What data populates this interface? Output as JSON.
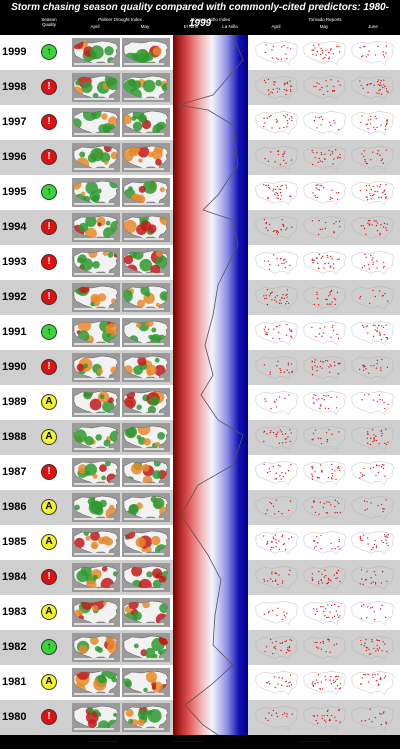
{
  "title": "Storm chasing season quality compared with commonly-cited predictors: 1980-1999",
  "headers": {
    "quality": "Season Quality",
    "drought_title": "Palmer Drought Index",
    "drought_april": "April",
    "drought_may": "May",
    "oni_title": "Oceanic Niño Index",
    "oni_el_nino": "El Niño",
    "oni_la_nina": "La Niña",
    "tornado_title": "Tornado Reports",
    "tornado_april": "April",
    "tornado_may": "May",
    "tornado_june": "June"
  },
  "rows": [
    {
      "year": "1999",
      "quality": "good",
      "symbol": "↑"
    },
    {
      "year": "1998",
      "quality": "bad",
      "symbol": "!"
    },
    {
      "year": "1997",
      "quality": "bad",
      "symbol": "!"
    },
    {
      "year": "1996",
      "quality": "bad",
      "symbol": "!"
    },
    {
      "year": "1995",
      "quality": "good",
      "symbol": "↑"
    },
    {
      "year": "1994",
      "quality": "bad",
      "symbol": "!"
    },
    {
      "year": "1993",
      "quality": "bad",
      "symbol": "!"
    },
    {
      "year": "1992",
      "quality": "bad",
      "symbol": "!"
    },
    {
      "year": "1991",
      "quality": "good",
      "symbol": "↑"
    },
    {
      "year": "1990",
      "quality": "bad",
      "symbol": "!"
    },
    {
      "year": "1989",
      "quality": "avg",
      "symbol": "A"
    },
    {
      "year": "1988",
      "quality": "avg",
      "symbol": "A"
    },
    {
      "year": "1987",
      "quality": "bad",
      "symbol": "!"
    },
    {
      "year": "1986",
      "quality": "avg",
      "symbol": "A"
    },
    {
      "year": "1985",
      "quality": "avg",
      "symbol": "A"
    },
    {
      "year": "1984",
      "quality": "bad",
      "symbol": "!"
    },
    {
      "year": "1983",
      "quality": "avg",
      "symbol": "A"
    },
    {
      "year": "1982",
      "quality": "good",
      "symbol": "↑"
    },
    {
      "year": "1981",
      "quality": "avg",
      "symbol": "A"
    },
    {
      "year": "1980",
      "quality": "bad",
      "symbol": "!"
    }
  ],
  "colors": {
    "good": "#3ad43a",
    "bad": "#e01010",
    "avg": "#f4f42a",
    "el_nino": "#7a0000",
    "la_nina": "#00008a",
    "tornado_dot": "#dd1111",
    "drought_green": "#2e9a2e",
    "drought_red": "#c41a1a",
    "drought_orange": "#e88a2a"
  }
}
